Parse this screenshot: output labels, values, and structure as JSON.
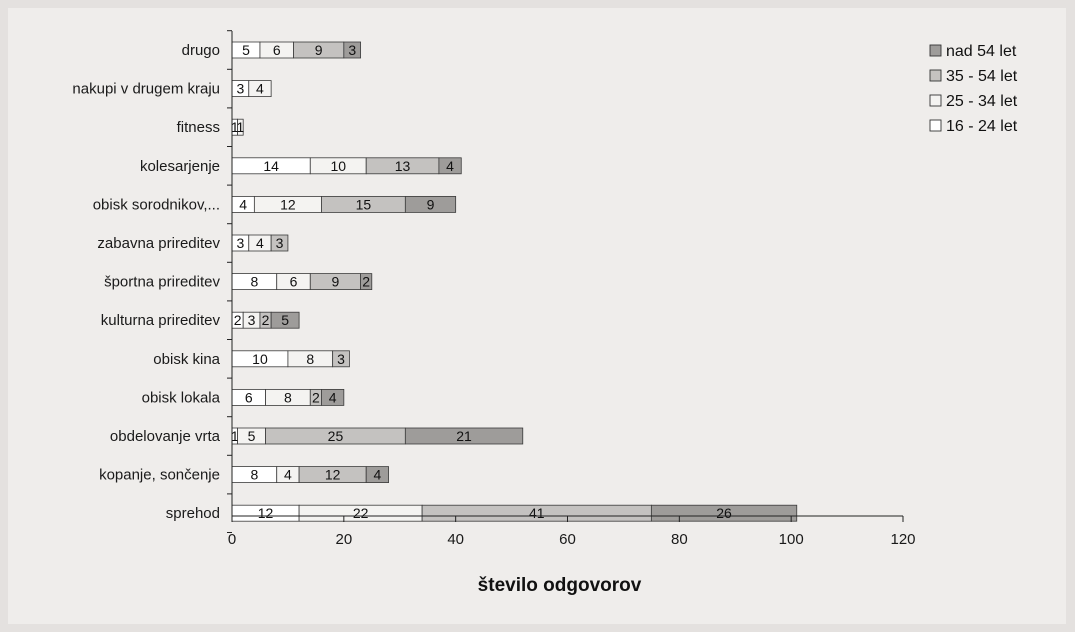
{
  "chart_data": {
    "type": "bar",
    "orientation": "horizontal",
    "stacked": true,
    "categories": [
      "drugo",
      "nakupi v drugem kraju",
      "fitness",
      "kolesarjenje",
      "obisk sorodnikov,...",
      "zabavna prireditev",
      "športna prireditev",
      "kulturna prireditev",
      "obisk kina",
      "obisk lokala",
      "obdelovanje vrta",
      "kopanje, sončenje",
      "sprehod"
    ],
    "series": [
      {
        "name": "16 - 24 let",
        "color": "#ffffff",
        "values": [
          5,
          3,
          1,
          14,
          4,
          3,
          8,
          2,
          10,
          6,
          1,
          8,
          12
        ]
      },
      {
        "name": "25 - 34 let",
        "color": "#f4f3f1",
        "values": [
          6,
          4,
          1,
          10,
          12,
          4,
          6,
          3,
          8,
          8,
          5,
          4,
          22
        ]
      },
      {
        "name": "35 - 54 let",
        "color": "#c4c2c0",
        "values": [
          9,
          0,
          0,
          13,
          15,
          3,
          9,
          2,
          3,
          2,
          25,
          12,
          41
        ]
      },
      {
        "name": "nad 54 let",
        "color": "#9e9c9a",
        "values": [
          3,
          0,
          0,
          4,
          9,
          0,
          2,
          5,
          0,
          4,
          21,
          4,
          26
        ]
      }
    ],
    "xlabel": "število odgovorov",
    "xlim": [
      0,
      120
    ],
    "xticks": [
      0,
      20,
      40,
      60,
      80,
      100,
      120
    ],
    "legend_position": "top-right",
    "legend_order": [
      "nad 54 let",
      "35 - 54 let",
      "25 - 34 let",
      "16 - 24 let"
    ],
    "grid": false
  }
}
